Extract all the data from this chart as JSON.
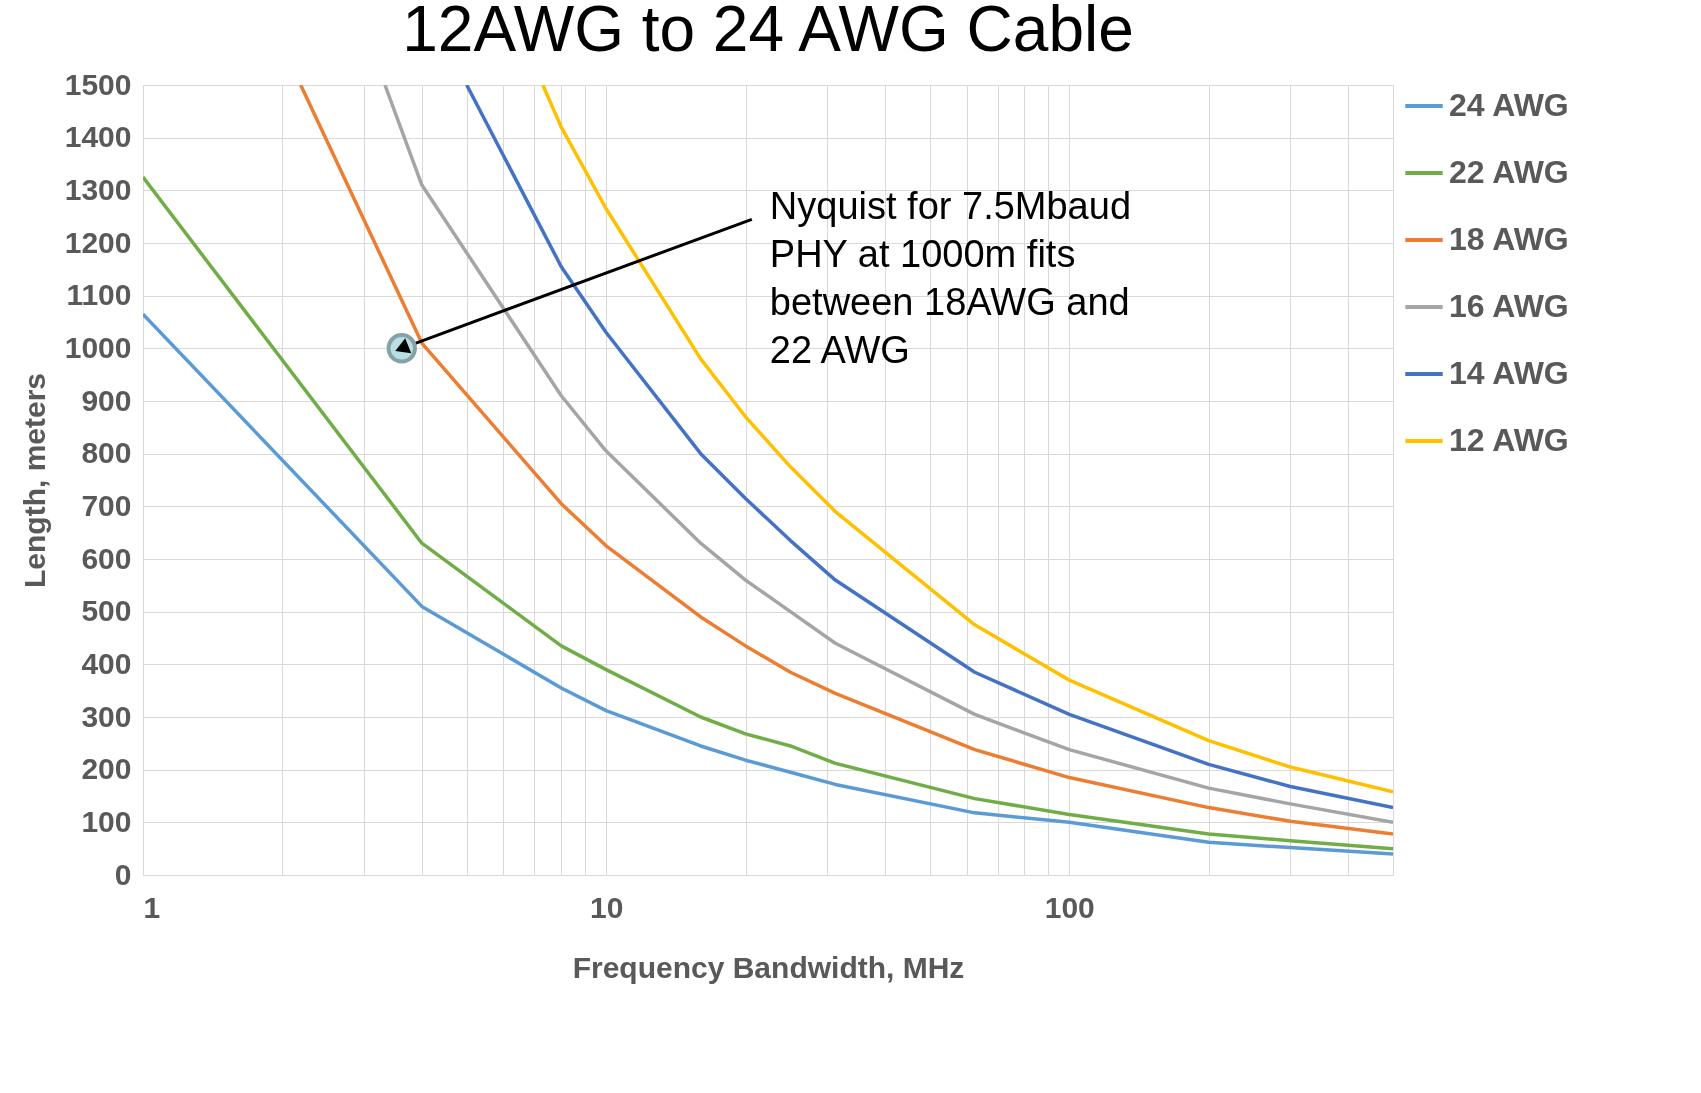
{
  "chart_data": {
    "type": "line",
    "title": "12AWG to 24 AWG Cable",
    "xlabel": "Frequency Bandwidth, MHz",
    "ylabel": "Length, meters",
    "log": "x",
    "xlim": [
      1,
      500
    ],
    "ylim": [
      0,
      1500
    ],
    "xticks": [
      1,
      {
        "value": 2,
        "label": null
      },
      {
        "value": 3,
        "label": null
      },
      {
        "value": 4,
        "label": null
      },
      {
        "value": 5,
        "label": null
      },
      {
        "value": 6,
        "label": null
      },
      {
        "value": 7,
        "label": null
      },
      {
        "value": 8,
        "label": null
      },
      {
        "value": 9,
        "label": null
      },
      10,
      {
        "value": 20,
        "label": null
      },
      {
        "value": 30,
        "label": null
      },
      {
        "value": 40,
        "label": null
      },
      {
        "value": 50,
        "label": null
      },
      {
        "value": 60,
        "label": null
      },
      {
        "value": 70,
        "label": null
      },
      {
        "value": 80,
        "label": null
      },
      {
        "value": 90,
        "label": null
      },
      100,
      {
        "value": 200,
        "label": null
      },
      {
        "value": 300,
        "label": null
      },
      {
        "value": 400,
        "label": null
      },
      {
        "value": 500,
        "label": null
      }
    ],
    "yticks": [
      0,
      100,
      200,
      300,
      400,
      500,
      600,
      700,
      800,
      900,
      1000,
      1100,
      1200,
      1300,
      1400,
      1500
    ],
    "grid": true,
    "legend": "right",
    "marker": "none",
    "line_style": "solid",
    "series": [
      {
        "name": "24 AWG",
        "color": "#5b9bd5",
        "x": [
          1,
          4,
          8,
          10,
          16,
          20,
          25,
          31.25,
          62.5,
          100,
          200,
          300,
          500
        ],
        "values": [
          1065,
          510,
          355,
          312,
          245,
          218,
          195,
          172,
          118,
          100,
          62,
          52,
          40
        ]
      },
      {
        "name": "22 AWG",
        "color": "#70ad47",
        "x": [
          1,
          4,
          8,
          10,
          16,
          20,
          25,
          31.25,
          62.5,
          100,
          200,
          300,
          500
        ],
        "values": [
          1325,
          630,
          435,
          390,
          300,
          268,
          245,
          212,
          145,
          115,
          78,
          65,
          50
        ]
      },
      {
        "name": "18 AWG",
        "color": "#ed7d31",
        "x": [
          2.19,
          4,
          8,
          10,
          16,
          20,
          25,
          31.25,
          62.5,
          100,
          200,
          300,
          500
        ],
        "values": [
          1500,
          1010,
          705,
          625,
          490,
          435,
          385,
          345,
          238,
          185,
          128,
          102,
          78
        ]
      },
      {
        "name": "16 AWG",
        "color": "#a5a5a5",
        "x": [
          3.33,
          4,
          8,
          10,
          16,
          20,
          25,
          31.25,
          62.5,
          100,
          200,
          300,
          500
        ],
        "values": [
          1500,
          1310,
          910,
          805,
          630,
          560,
          500,
          440,
          305,
          238,
          165,
          135,
          100
        ]
      },
      {
        "name": "14 AWG",
        "color": "#4472c4",
        "x": [
          5,
          8,
          10,
          16,
          20,
          25,
          31.25,
          62.5,
          100,
          200,
          300,
          500
        ],
        "values": [
          1500,
          1155,
          1030,
          800,
          715,
          635,
          560,
          385,
          305,
          210,
          168,
          128
        ]
      },
      {
        "name": "12 AWG",
        "color": "#ffc000",
        "x": [
          7.3,
          8,
          10,
          16,
          20,
          25,
          31.25,
          62.5,
          100,
          200,
          300,
          500
        ],
        "values": [
          1500,
          1420,
          1265,
          980,
          870,
          775,
          690,
          475,
          370,
          255,
          205,
          158
        ]
      }
    ],
    "annotations": [
      {
        "text": "Nyquist for 7.5Mbaud\nPHY at 1000m fits\nbetween 18AWG and\n22 AWG",
        "x": 3.62,
        "y": 1000
      }
    ]
  }
}
